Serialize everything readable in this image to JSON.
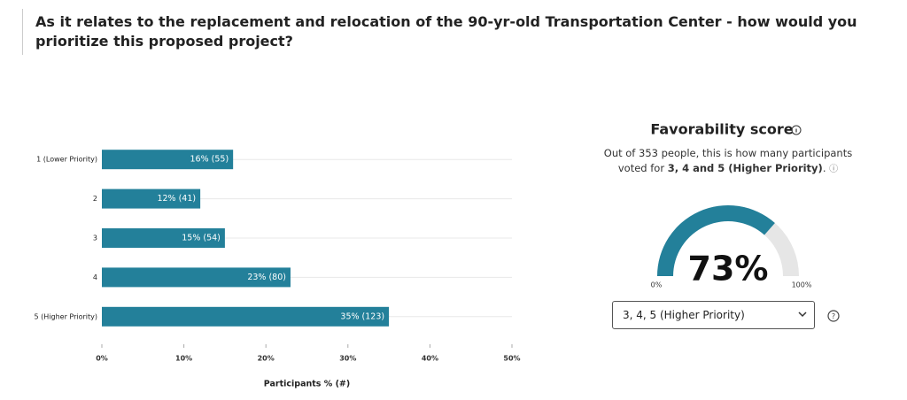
{
  "question": "As it relates to the replacement and relocation of the 90-yr-old Transportation Center - how would you prioritize this proposed project?",
  "chart_data": {
    "type": "bar",
    "orientation": "horizontal",
    "color": "#23809a",
    "categories": [
      "1 (Lower Priority)",
      "2",
      "3",
      "4",
      "5 (Higher Priority)"
    ],
    "values": [
      16,
      12,
      15,
      23,
      35
    ],
    "value_labels": [
      "16% (55)",
      "12% (41)",
      "15% (54)",
      "23% (80)",
      "35% (123)"
    ],
    "xlim": [
      0,
      50
    ],
    "xticks": [
      {
        "value": 0,
        "label": "0%"
      },
      {
        "value": 10,
        "label": "10%"
      },
      {
        "value": 20,
        "label": "20%"
      },
      {
        "value": 30,
        "label": "30%"
      },
      {
        "value": 40,
        "label": "40%"
      },
      {
        "value": 50,
        "label": "50%"
      }
    ],
    "xlabel": "Participants % (#)",
    "grid": true
  },
  "favorability": {
    "title": "Favorability score",
    "description": [
      "Out of 353 people, this is how many participants voted for",
      "3, 4 and 5 (Higher Priority)",
      "."
    ],
    "gauge": {
      "value": 73,
      "label": "73%",
      "color": "#23809a",
      "track_color": "#e6e6e6",
      "ticks": [
        {
          "value": 0,
          "label": "0%"
        },
        {
          "value": 100,
          "label": "100%"
        }
      ]
    },
    "dropdown": "3, 4, 5 (Higher Priority)"
  }
}
